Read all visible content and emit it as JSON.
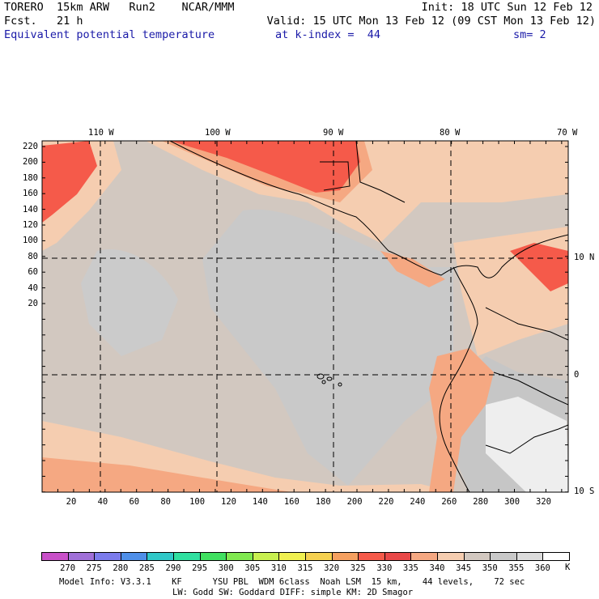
{
  "header": {
    "model": "TORERO  15km ARW   Run2    NCAR/MMM",
    "init": "Init: 18 UTC Sun 12 Feb 12",
    "fcst": "Fcst.   21 h",
    "valid": "Valid: 15 UTC Mon 13 Feb 12 (09 CST Mon 13 Feb 12)",
    "field": "Equivalent potential temperature",
    "level": "at k-index =  44",
    "smooth": "sm= 2"
  },
  "map": {
    "top_lon_labels": [
      "110 W",
      "100 W",
      "90 W",
      "80 W",
      "70 W"
    ],
    "right_lat_labels": [
      "10 N",
      "0",
      "10 S"
    ],
    "left_y_ticks": [
      "220",
      "200",
      "180",
      "160",
      "140",
      "120",
      "100",
      "80",
      "60",
      "40",
      "20"
    ],
    "bottom_x_ticks": [
      "20",
      "40",
      "60",
      "80",
      "100",
      "120",
      "140",
      "160",
      "180",
      "200",
      "220",
      "240",
      "260",
      "280",
      "300",
      "320"
    ]
  },
  "colorbar": {
    "unit": "K",
    "labels": [
      "270",
      "275",
      "280",
      "285",
      "290",
      "295",
      "300",
      "305",
      "310",
      "315",
      "320",
      "325",
      "330",
      "335",
      "340",
      "345",
      "350",
      "355",
      "360"
    ],
    "colors": [
      "#c850c8",
      "#a070d8",
      "#7c7cec",
      "#4f8fe8",
      "#30c8c8",
      "#30e0a0",
      "#40e060",
      "#80e850",
      "#c8f050",
      "#f0f050",
      "#f5d050",
      "#f5a060",
      "#f55a4a",
      "#e84848",
      "#f5a882",
      "#f5cdb0",
      "#d2c8c0",
      "#c8c8c8",
      "#dcdcdc",
      "#ffffff"
    ]
  },
  "footer": {
    "line1": "Model Info: V3.3.1    KF      YSU PBL  WDM 6class  Noah LSM  15 km,    44 levels,    72 sec",
    "line2": "LW: Godd SW: Goddard DIFF: simple KM: 2D Smagor"
  }
}
